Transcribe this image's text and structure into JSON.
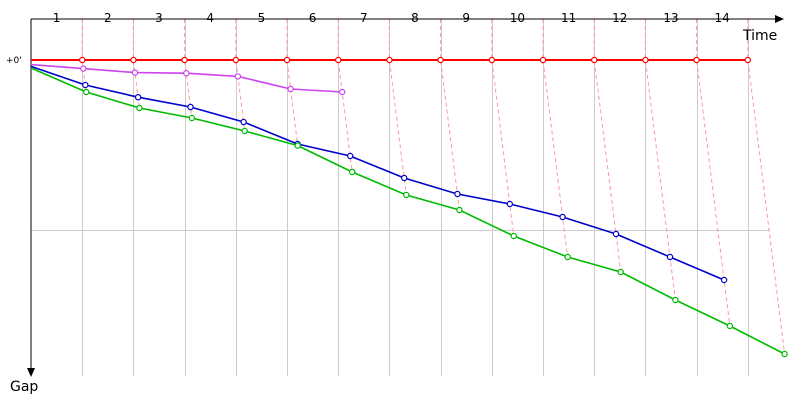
{
  "chart_data": {
    "type": "line",
    "xlabel": "Time",
    "ylabel": "Gap",
    "y_tick_label": "+0'",
    "x_top_labels": [
      "1",
      "2",
      "3",
      "4",
      "5",
      "6",
      "7",
      "8",
      "9",
      "10",
      "11",
      "12",
      "13",
      "14"
    ],
    "grid": true,
    "series": [
      {
        "color": "#ff0000",
        "values": [
          0,
          0,
          0,
          0,
          0,
          0,
          0,
          0,
          0,
          0,
          0,
          0,
          0,
          0,
          0
        ]
      },
      {
        "color": "#cc44ee",
        "values": [
          2.3,
          4.3,
          6.3,
          6.6,
          8.2,
          14.5,
          16.0
        ]
      },
      {
        "color": "#0000cc",
        "values": [
          3.2,
          12.5,
          18.6,
          23.5,
          31.0,
          42.0,
          48.0,
          59.0,
          67.0,
          72.0,
          78.5,
          87.0,
          98.5,
          110.0
        ]
      },
      {
        "color": "#00bb00",
        "values": [
          4.0,
          16.0,
          24.0,
          29.0,
          35.5,
          42.8,
          56.0,
          67.5,
          75.0,
          88.0,
          98.5,
          106.0,
          120.0,
          133.0,
          147.0
        ]
      }
    ]
  }
}
